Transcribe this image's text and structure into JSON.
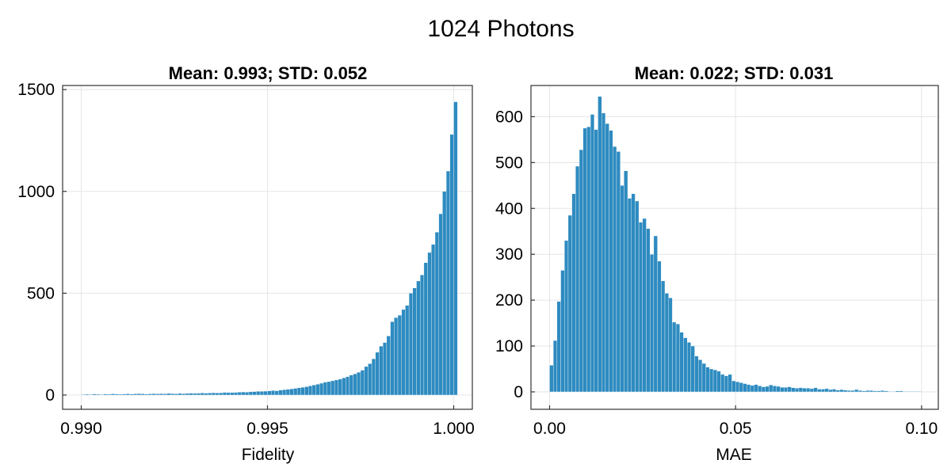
{
  "figure": {
    "title": "1024 Photons"
  },
  "chart_data": [
    {
      "type": "bar",
      "title": "Mean: 0.993;   STD: 0.052",
      "xlabel": "Fidelity",
      "ylabel": "",
      "xlim": [
        0.9895,
        1.0005
      ],
      "ylim": [
        -70,
        1520
      ],
      "xticks": [
        0.99,
        0.995,
        1.0
      ],
      "xtick_labels": [
        "0.990",
        "0.995",
        "1.000"
      ],
      "yticks": [
        0,
        500,
        1000,
        1500
      ],
      "ytick_labels": [
        "0",
        "500",
        "1000",
        "1500"
      ],
      "grid": true,
      "bar_color": "#2e8bc0",
      "bin_start": 0.99,
      "bin_width": 0.0001,
      "values": [
        3,
        4,
        3,
        5,
        4,
        3,
        5,
        4,
        6,
        5,
        4,
        5,
        6,
        5,
        6,
        7,
        6,
        5,
        6,
        7,
        6,
        7,
        6,
        8,
        7,
        6,
        8,
        7,
        8,
        9,
        8,
        9,
        10,
        9,
        10,
        11,
        10,
        11,
        13,
        12,
        12,
        13,
        14,
        15,
        14,
        16,
        17,
        18,
        18,
        19,
        20,
        22,
        21,
        24,
        26,
        28,
        30,
        33,
        36,
        38,
        41,
        45,
        49,
        53,
        58,
        63,
        66,
        70,
        74,
        78,
        84,
        90,
        98,
        104,
        112,
        122,
        140,
        154,
        178,
        210,
        240,
        258,
        290,
        360,
        380,
        392,
        420,
        440,
        500,
        526,
        560,
        590,
        650,
        700,
        740,
        800,
        890,
        1000,
        1100,
        1280,
        1440
      ]
    },
    {
      "type": "bar",
      "title": "Mean: 0.022;   STD: 0.031",
      "xlabel": "MAE",
      "ylabel": "",
      "xlim": [
        -0.005,
        0.1045
      ],
      "ylim": [
        -38,
        668
      ],
      "xticks": [
        0.0,
        0.05,
        0.1
      ],
      "xtick_labels": [
        "0.00",
        "0.05",
        "0.10"
      ],
      "yticks": [
        0,
        100,
        200,
        300,
        400,
        500,
        600
      ],
      "ytick_labels": [
        "0",
        "100",
        "200",
        "300",
        "400",
        "500",
        "600"
      ],
      "grid": true,
      "bar_color": "#2e8bc0",
      "bin_start": 0.0,
      "bin_width": 0.001,
      "values": [
        58,
        112,
        197,
        265,
        330,
        385,
        432,
        492,
        528,
        575,
        578,
        605,
        572,
        644,
        608,
        585,
        570,
        535,
        524,
        450,
        482,
        422,
        432,
        416,
        370,
        378,
        356,
        300,
        340,
        285,
        242,
        215,
        205,
        152,
        148,
        130,
        118,
        108,
        100,
        78,
        70,
        62,
        54,
        50,
        48,
        45,
        38,
        35,
        38,
        24,
        22,
        20,
        18,
        16,
        14,
        16,
        13,
        11,
        12,
        15,
        13,
        12,
        10,
        10,
        11,
        9,
        8,
        9,
        8,
        8,
        7,
        9,
        6,
        6,
        7,
        5,
        6,
        4,
        5,
        4,
        3,
        3,
        5,
        3,
        2,
        3,
        3,
        2,
        2,
        3,
        2,
        1,
        1,
        2,
        2,
        1,
        1,
        1,
        1,
        1
      ]
    }
  ]
}
